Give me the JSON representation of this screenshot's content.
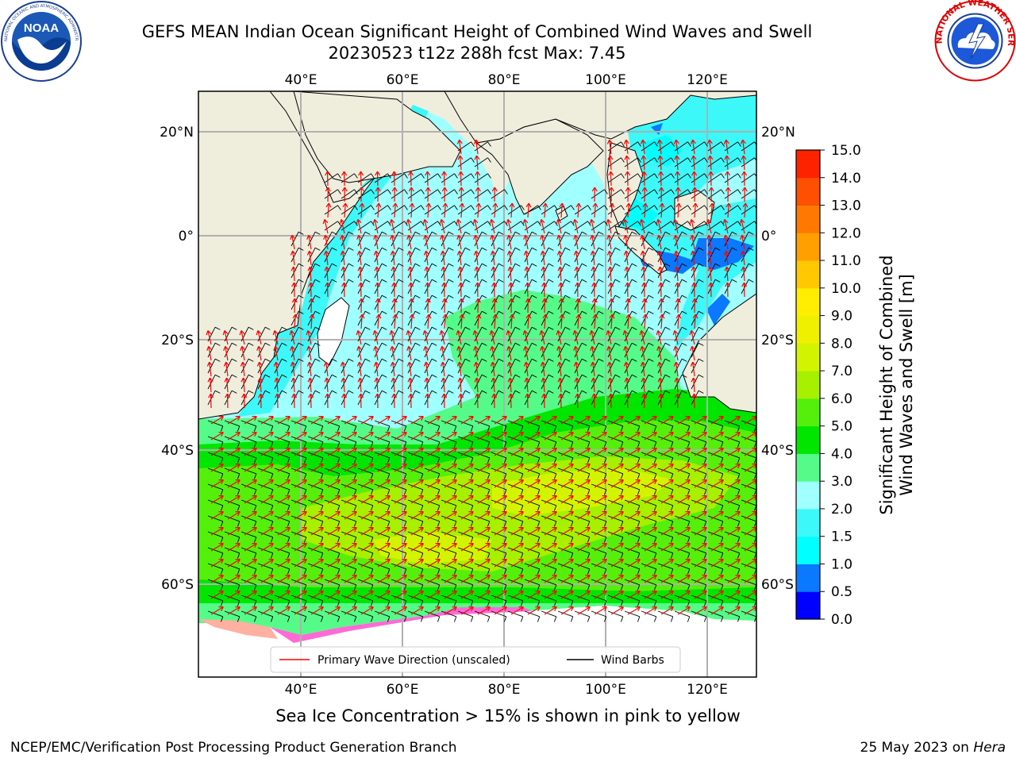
{
  "header": {
    "title_line1": "GEFS MEAN Indian Ocean Significant Height of Combined Wind Waves and Swell",
    "title_line2": "20230523 t12z 288h fcst   Max: 7.45"
  },
  "logos": {
    "noaa_text": "NOAA",
    "noaa_ring_text": "NATIONAL OCEANIC AND ATMOSPHERIC ADMINISTRATION · U.S. DEPARTMENT OF COMMERCE",
    "nws_ring_text": "NATIONAL WEATHER SERVICE"
  },
  "map": {
    "lon_labels": [
      "40°E",
      "60°E",
      "80°E",
      "100°E",
      "120°E"
    ],
    "lon_values": [
      40,
      60,
      80,
      100,
      120
    ],
    "lat_labels": [
      "20°N",
      "0°",
      "20°S",
      "40°S",
      "60°S"
    ],
    "lat_values": [
      20,
      0,
      -20,
      -40,
      -60
    ],
    "lon_range": [
      20,
      130
    ],
    "lat_range": [
      -72,
      24
    ],
    "land_color": "#efeedd",
    "legend": {
      "wave_label": "Primary Wave Direction (unscaled)",
      "wind_label": "Wind Barbs",
      "wave_color": "#ff0000",
      "wind_color": "#000000"
    }
  },
  "colorbar": {
    "label_line1": "Significant Height of Combined",
    "label_line2": "Wind Waves and Swell [m]",
    "ticks": [
      "0.0",
      "0.5",
      "1.0",
      "1.5",
      "2.0",
      "3.0",
      "4.0",
      "5.0",
      "6.0",
      "7.0",
      "8.0",
      "9.0",
      "10.0",
      "11.0",
      "12.0",
      "13.0",
      "14.0",
      "15.0"
    ],
    "colors": [
      "#0000ff",
      "#0a78ff",
      "#00ffff",
      "#3cf8f8",
      "#a0ffff",
      "#55fb88",
      "#00e600",
      "#55ef0c",
      "#a6f000",
      "#d3f400",
      "#eef000",
      "#ffee00",
      "#ffc800",
      "#ff9f00",
      "#ff7800",
      "#ff4f00",
      "#ff2200"
    ]
  },
  "caption": "Sea Ice Concentration > 15% is shown in pink to yellow",
  "footer": {
    "left": "NCEP/EMC/Verification Post Processing Product Generation Branch",
    "date": "25 May 2023 on ",
    "machine": "Hera"
  }
}
